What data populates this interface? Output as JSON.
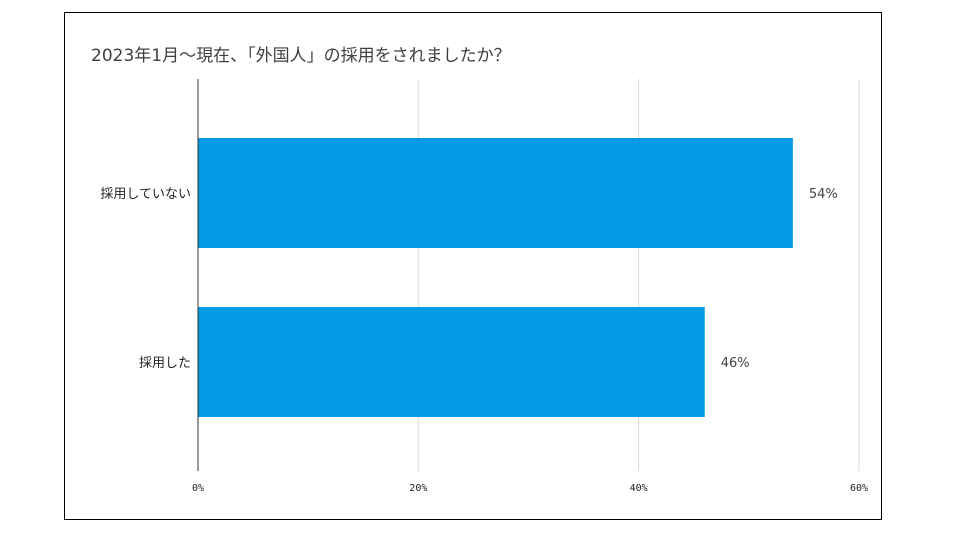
{
  "colors": {
    "bar": "#039BE5",
    "grid": "#D9D9D9",
    "axis": "#333333"
  },
  "chart_data": {
    "type": "bar",
    "orientation": "horizontal",
    "title": "2023年1月～現在、「外国人」の採用をされましたか？",
    "categories": [
      "採用していない",
      "採用した"
    ],
    "values": [
      54,
      46
    ],
    "data_labels": [
      "54%",
      "46%"
    ],
    "xlim": [
      0,
      60
    ],
    "xticks": [
      0,
      20,
      40,
      60
    ],
    "xtick_labels": [
      "0%",
      "20%",
      "40%",
      "60%"
    ],
    "grid": true,
    "legend": "none"
  }
}
